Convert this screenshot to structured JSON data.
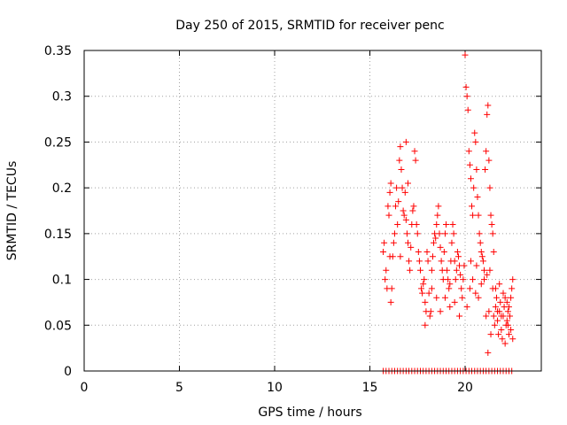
{
  "chart_data": {
    "type": "scatter",
    "title": "Day 250 of 2015, SRMTID for receiver penc",
    "xlabel": "GPS time / hours",
    "ylabel": "SRMTID / TECUs",
    "xlim": [
      0,
      24
    ],
    "ylim": [
      0,
      0.35
    ],
    "x_ticks": [
      0,
      5,
      10,
      15,
      20
    ],
    "y_ticks": [
      0,
      0.05,
      0.1,
      0.15,
      0.2,
      0.25,
      0.3,
      0.35
    ],
    "x_tick_labels": [
      "0",
      "5",
      "10",
      "15",
      "20"
    ],
    "y_tick_labels": [
      "0",
      "0.05",
      "0.1",
      "0.15",
      "0.2",
      "0.25",
      "0.3",
      "0.35"
    ],
    "grid": true,
    "marker": "+",
    "series": [
      {
        "name": "SRMTID",
        "color": "#ff0000",
        "points": [
          [
            15.7,
            0.0
          ],
          [
            15.85,
            0.0
          ],
          [
            16.0,
            0.0
          ],
          [
            16.15,
            0.0
          ],
          [
            16.3,
            0.0
          ],
          [
            16.45,
            0.0
          ],
          [
            16.6,
            0.0
          ],
          [
            16.75,
            0.0
          ],
          [
            16.9,
            0.0
          ],
          [
            17.05,
            0.0
          ],
          [
            17.2,
            0.0
          ],
          [
            17.35,
            0.0
          ],
          [
            17.5,
            0.0
          ],
          [
            17.65,
            0.0
          ],
          [
            17.8,
            0.0
          ],
          [
            17.95,
            0.0
          ],
          [
            18.1,
            0.0
          ],
          [
            18.25,
            0.0
          ],
          [
            18.4,
            0.0
          ],
          [
            18.55,
            0.0
          ],
          [
            18.7,
            0.0
          ],
          [
            18.85,
            0.0
          ],
          [
            19.0,
            0.0
          ],
          [
            19.15,
            0.0
          ],
          [
            19.3,
            0.0
          ],
          [
            19.45,
            0.0
          ],
          [
            19.6,
            0.0
          ],
          [
            19.75,
            0.0
          ],
          [
            19.9,
            0.0
          ],
          [
            20.05,
            0.0
          ],
          [
            20.2,
            0.0
          ],
          [
            20.35,
            0.0
          ],
          [
            20.5,
            0.0
          ],
          [
            20.65,
            0.0
          ],
          [
            20.8,
            0.0
          ],
          [
            20.95,
            0.0
          ],
          [
            21.1,
            0.0
          ],
          [
            21.25,
            0.0
          ],
          [
            21.4,
            0.0
          ],
          [
            21.55,
            0.0
          ],
          [
            21.7,
            0.0
          ],
          [
            21.85,
            0.0
          ],
          [
            22.0,
            0.0
          ],
          [
            22.15,
            0.0
          ],
          [
            22.3,
            0.0
          ],
          [
            22.45,
            0.0
          ],
          [
            15.7,
            0.13
          ],
          [
            15.75,
            0.14
          ],
          [
            15.8,
            0.1
          ],
          [
            15.85,
            0.11
          ],
          [
            15.9,
            0.09
          ],
          [
            15.95,
            0.18
          ],
          [
            16.0,
            0.17
          ],
          [
            16.05,
            0.195
          ],
          [
            16.1,
            0.205
          ],
          [
            16.15,
            0.09
          ],
          [
            16.2,
            0.125
          ],
          [
            16.25,
            0.14
          ],
          [
            16.3,
            0.15
          ],
          [
            16.35,
            0.18
          ],
          [
            16.4,
            0.2
          ],
          [
            16.45,
            0.16
          ],
          [
            16.5,
            0.185
          ],
          [
            16.55,
            0.23
          ],
          [
            16.6,
            0.245
          ],
          [
            16.65,
            0.22
          ],
          [
            16.7,
            0.2
          ],
          [
            16.75,
            0.175
          ],
          [
            16.8,
            0.17
          ],
          [
            16.85,
            0.195
          ],
          [
            16.9,
            0.165
          ],
          [
            16.95,
            0.15
          ],
          [
            17.0,
            0.14
          ],
          [
            17.05,
            0.12
          ],
          [
            17.1,
            0.11
          ],
          [
            17.15,
            0.135
          ],
          [
            17.2,
            0.16
          ],
          [
            17.25,
            0.175
          ],
          [
            17.3,
            0.18
          ],
          [
            17.35,
            0.24
          ],
          [
            17.4,
            0.23
          ],
          [
            17.45,
            0.16
          ],
          [
            17.5,
            0.15
          ],
          [
            17.55,
            0.13
          ],
          [
            17.6,
            0.12
          ],
          [
            17.65,
            0.11
          ],
          [
            17.7,
            0.09
          ],
          [
            17.75,
            0.085
          ],
          [
            17.8,
            0.095
          ],
          [
            17.85,
            0.1
          ],
          [
            17.9,
            0.075
          ],
          [
            17.95,
            0.065
          ],
          [
            16.05,
            0.125
          ],
          [
            16.6,
            0.125
          ],
          [
            16.9,
            0.25
          ],
          [
            17.0,
            0.205
          ],
          [
            16.1,
            0.075
          ],
          [
            18.0,
            0.13
          ],
          [
            18.05,
            0.12
          ],
          [
            18.1,
            0.085
          ],
          [
            18.15,
            0.06
          ],
          [
            18.2,
            0.065
          ],
          [
            18.25,
            0.11
          ],
          [
            18.3,
            0.125
          ],
          [
            18.35,
            0.14
          ],
          [
            18.4,
            0.15
          ],
          [
            18.45,
            0.145
          ],
          [
            18.5,
            0.16
          ],
          [
            18.55,
            0.17
          ],
          [
            18.6,
            0.18
          ],
          [
            18.65,
            0.15
          ],
          [
            18.7,
            0.135
          ],
          [
            18.75,
            0.12
          ],
          [
            18.8,
            0.11
          ],
          [
            18.85,
            0.1
          ],
          [
            18.9,
            0.13
          ],
          [
            18.95,
            0.15
          ],
          [
            19.0,
            0.16
          ],
          [
            19.05,
            0.11
          ],
          [
            19.1,
            0.1
          ],
          [
            19.15,
            0.09
          ],
          [
            19.2,
            0.095
          ],
          [
            19.25,
            0.12
          ],
          [
            19.3,
            0.14
          ],
          [
            19.35,
            0.16
          ],
          [
            19.4,
            0.15
          ],
          [
            19.45,
            0.12
          ],
          [
            19.5,
            0.1
          ],
          [
            19.55,
            0.11
          ],
          [
            19.6,
            0.13
          ],
          [
            19.65,
            0.125
          ],
          [
            19.7,
            0.115
          ],
          [
            19.75,
            0.105
          ],
          [
            19.8,
            0.09
          ],
          [
            19.85,
            0.08
          ],
          [
            19.9,
            0.1
          ],
          [
            19.95,
            0.115
          ],
          [
            18.25,
            0.09
          ],
          [
            18.5,
            0.08
          ],
          [
            18.7,
            0.065
          ],
          [
            18.95,
            0.08
          ],
          [
            19.2,
            0.07
          ],
          [
            19.45,
            0.075
          ],
          [
            19.7,
            0.06
          ],
          [
            17.9,
            0.05
          ],
          [
            20.0,
            0.345
          ],
          [
            20.05,
            0.31
          ],
          [
            20.1,
            0.3
          ],
          [
            20.15,
            0.285
          ],
          [
            20.2,
            0.24
          ],
          [
            20.25,
            0.225
          ],
          [
            20.3,
            0.21
          ],
          [
            20.35,
            0.18
          ],
          [
            20.4,
            0.17
          ],
          [
            20.45,
            0.2
          ],
          [
            20.5,
            0.26
          ],
          [
            20.55,
            0.25
          ],
          [
            20.6,
            0.22
          ],
          [
            20.65,
            0.19
          ],
          [
            20.7,
            0.17
          ],
          [
            20.75,
            0.15
          ],
          [
            20.8,
            0.14
          ],
          [
            20.85,
            0.13
          ],
          [
            20.9,
            0.125
          ],
          [
            20.95,
            0.12
          ],
          [
            21.0,
            0.11
          ],
          [
            21.05,
            0.22
          ],
          [
            21.1,
            0.24
          ],
          [
            21.15,
            0.28
          ],
          [
            21.2,
            0.29
          ],
          [
            21.25,
            0.23
          ],
          [
            21.3,
            0.2
          ],
          [
            21.35,
            0.17
          ],
          [
            21.4,
            0.16
          ],
          [
            21.45,
            0.15
          ],
          [
            21.5,
            0.13
          ],
          [
            20.1,
            0.07
          ],
          [
            20.25,
            0.09
          ],
          [
            20.4,
            0.1
          ],
          [
            20.55,
            0.085
          ],
          [
            20.7,
            0.08
          ],
          [
            20.85,
            0.095
          ],
          [
            21.0,
            0.1
          ],
          [
            21.15,
            0.105
          ],
          [
            21.3,
            0.11
          ],
          [
            21.45,
            0.09
          ],
          [
            20.3,
            0.12
          ],
          [
            20.6,
            0.115
          ],
          [
            21.1,
            0.06
          ],
          [
            21.35,
            0.04
          ],
          [
            21.2,
            0.02
          ],
          [
            21.25,
            0.065
          ],
          [
            21.5,
            0.06
          ],
          [
            21.55,
            0.05
          ],
          [
            21.6,
            0.07
          ],
          [
            21.65,
            0.08
          ],
          [
            21.7,
            0.055
          ],
          [
            21.75,
            0.04
          ],
          [
            21.8,
            0.065
          ],
          [
            21.85,
            0.075
          ],
          [
            21.9,
            0.045
          ],
          [
            21.95,
            0.035
          ],
          [
            22.0,
            0.06
          ],
          [
            22.05,
            0.07
          ],
          [
            22.1,
            0.08
          ],
          [
            22.15,
            0.05
          ],
          [
            22.2,
            0.055
          ],
          [
            22.25,
            0.065
          ],
          [
            22.3,
            0.07
          ],
          [
            22.35,
            0.06
          ],
          [
            22.4,
            0.045
          ],
          [
            22.45,
            0.09
          ],
          [
            22.5,
            0.1
          ],
          [
            21.6,
            0.09
          ],
          [
            21.8,
            0.095
          ],
          [
            22.0,
            0.085
          ],
          [
            22.2,
            0.075
          ],
          [
            22.4,
            0.08
          ],
          [
            22.1,
            0.03
          ],
          [
            22.3,
            0.04
          ],
          [
            22.5,
            0.035
          ],
          [
            21.7,
            0.065
          ],
          [
            21.9,
            0.06
          ],
          [
            22.25,
            0.05
          ]
        ]
      }
    ]
  }
}
